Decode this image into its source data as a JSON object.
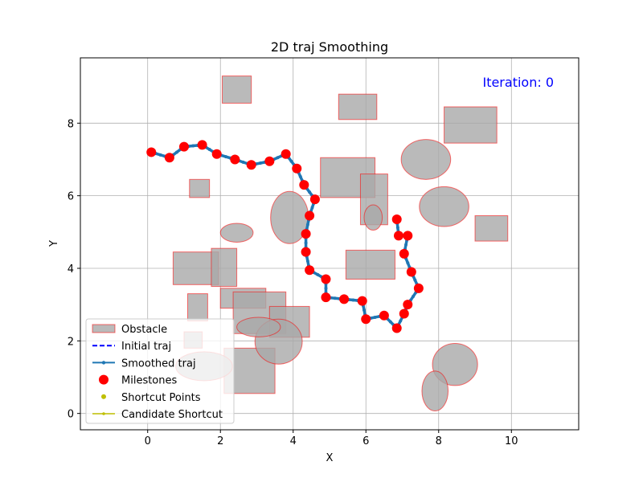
{
  "chart_data": {
    "type": "line",
    "title": "2D traj Smoothing",
    "xlabel": "X",
    "ylabel": "Y",
    "xlim": [
      -1.85,
      11.85
    ],
    "ylim": [
      -0.45,
      9.8
    ],
    "xticks": [
      0,
      2,
      4,
      6,
      8,
      10
    ],
    "yticks": [
      0,
      2,
      4,
      6,
      8
    ],
    "grid": true,
    "legend_position": "lower-left",
    "annotation": {
      "text": "Iteration: 0",
      "color": "#0000ff"
    },
    "colors": {
      "obstacle_fill": "#a9a9a9",
      "obstacle_edge": "#ff0000",
      "initial": "#0000ff",
      "smoothed": "#1f77b4",
      "milestone": "#ff0000",
      "shortcut": "#bfbf00"
    },
    "legend": [
      {
        "label": "Obstacle",
        "kind": "patch"
      },
      {
        "label": "Initial traj",
        "kind": "dashed-line"
      },
      {
        "label": "Smoothed traj",
        "kind": "line-dots"
      },
      {
        "label": "Milestones",
        "kind": "marker"
      },
      {
        "label": "Shortcut Points",
        "kind": "small-marker"
      },
      {
        "label": "Candidate Shortcut",
        "kind": "line-marker"
      }
    ],
    "obstacles": {
      "rectangles": [
        {
          "x0": 2.05,
          "y0": 8.55,
          "x1": 2.85,
          "y1": 9.3
        },
        {
          "x0": 5.25,
          "y0": 8.1,
          "x1": 6.3,
          "y1": 8.8
        },
        {
          "x0": 8.15,
          "y0": 7.45,
          "x1": 9.6,
          "y1": 8.45
        },
        {
          "x0": 4.75,
          "y0": 5.95,
          "x1": 6.25,
          "y1": 7.05
        },
        {
          "x0": 5.85,
          "y0": 5.2,
          "x1": 6.6,
          "y1": 6.6
        },
        {
          "x0": 1.15,
          "y0": 5.95,
          "x1": 1.7,
          "y1": 6.45
        },
        {
          "x0": 9.0,
          "y0": 4.75,
          "x1": 9.9,
          "y1": 5.45
        },
        {
          "x0": 0.7,
          "y0": 3.55,
          "x1": 1.95,
          "y1": 4.45
        },
        {
          "x0": 1.75,
          "y0": 3.5,
          "x1": 2.45,
          "y1": 4.55
        },
        {
          "x0": 5.45,
          "y0": 3.7,
          "x1": 6.8,
          "y1": 4.5
        },
        {
          "x0": 2.0,
          "y0": 2.9,
          "x1": 3.25,
          "y1": 3.45
        },
        {
          "x0": 2.35,
          "y0": 2.2,
          "x1": 3.8,
          "y1": 3.35
        },
        {
          "x0": 1.1,
          "y0": 2.55,
          "x1": 1.65,
          "y1": 3.3
        },
        {
          "x0": 3.35,
          "y0": 2.1,
          "x1": 4.45,
          "y1": 2.95
        },
        {
          "x0": 2.1,
          "y0": 0.55,
          "x1": 3.5,
          "y1": 1.8
        },
        {
          "x0": 1.0,
          "y0": 1.8,
          "x1": 1.5,
          "y1": 2.25
        }
      ],
      "ellipses": [
        {
          "cx": 7.65,
          "cy": 7.0,
          "rx": 0.68,
          "ry": 0.55
        },
        {
          "cx": 3.9,
          "cy": 5.4,
          "rx": 0.52,
          "ry": 0.72
        },
        {
          "cx": 8.15,
          "cy": 5.7,
          "rx": 0.68,
          "ry": 0.55
        },
        {
          "cx": 2.45,
          "cy": 4.98,
          "rx": 0.45,
          "ry": 0.26
        },
        {
          "cx": 6.2,
          "cy": 5.4,
          "rx": 0.25,
          "ry": 0.35
        },
        {
          "cx": 3.6,
          "cy": 1.98,
          "rx": 0.65,
          "ry": 0.62
        },
        {
          "cx": 3.05,
          "cy": 2.38,
          "rx": 0.6,
          "ry": 0.27
        },
        {
          "cx": 1.55,
          "cy": 1.3,
          "rx": 0.78,
          "ry": 0.4
        },
        {
          "cx": 8.45,
          "cy": 1.35,
          "rx": 0.62,
          "ry": 0.58
        },
        {
          "cx": 7.9,
          "cy": 0.62,
          "rx": 0.36,
          "ry": 0.55
        }
      ]
    },
    "milestones": {
      "x": [
        0.1,
        0.6,
        1.0,
        1.5,
        1.9,
        2.4,
        2.85,
        3.35,
        3.8,
        4.1,
        4.3,
        4.6,
        4.45,
        4.35,
        4.35,
        4.45,
        4.9,
        4.9,
        5.4,
        5.9,
        6.0,
        6.5,
        6.85,
        7.05,
        7.15,
        7.45,
        7.25,
        7.05,
        7.15,
        6.9,
        6.85
      ],
      "y": [
        7.2,
        7.05,
        7.35,
        7.4,
        7.15,
        7.0,
        6.85,
        6.95,
        7.15,
        6.75,
        6.3,
        5.9,
        5.45,
        4.95,
        4.45,
        3.95,
        3.7,
        3.2,
        3.15,
        3.1,
        2.6,
        2.7,
        2.35,
        2.75,
        3.0,
        3.45,
        3.9,
        4.4,
        4.9,
        4.9,
        5.35
      ]
    },
    "smoothed_traj": {
      "x": [
        0.1,
        0.6,
        1.0,
        1.5,
        1.9,
        2.4,
        2.85,
        3.35,
        3.8,
        4.1,
        4.3,
        4.6,
        4.45,
        4.35,
        4.35,
        4.45,
        4.9,
        4.9,
        5.4,
        5.9,
        6.0,
        6.5,
        6.85,
        7.05,
        7.15,
        7.45,
        7.25,
        7.05,
        7.15,
        6.9,
        6.85
      ],
      "y": [
        7.2,
        7.05,
        7.35,
        7.4,
        7.15,
        7.0,
        6.85,
        6.95,
        7.15,
        6.75,
        6.3,
        5.9,
        5.45,
        4.95,
        4.45,
        3.95,
        3.7,
        3.2,
        3.15,
        3.1,
        2.6,
        2.7,
        2.35,
        2.75,
        3.0,
        3.45,
        3.9,
        4.4,
        4.9,
        4.9,
        5.35
      ]
    }
  }
}
